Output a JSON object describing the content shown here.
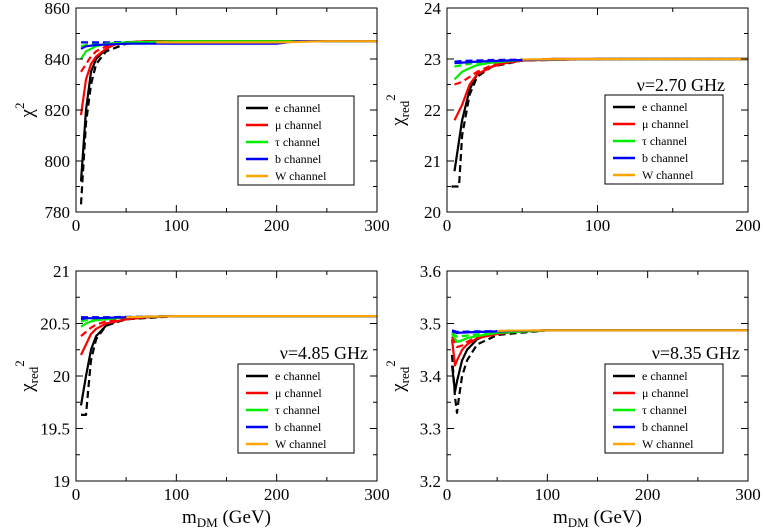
{
  "chart_data": [
    {
      "type": "line",
      "panel": "top-left",
      "title": "",
      "annotation": "",
      "xlabel": "",
      "ylabel": "χ",
      "ylabel_sup": "2",
      "ylabel_sub": "",
      "xlim": [
        0,
        300
      ],
      "ylim": [
        780,
        860
      ],
      "xticks": [
        0,
        100,
        200,
        300
      ],
      "yticks": [
        780,
        800,
        820,
        840,
        860
      ],
      "xtick_labels": [
        "0",
        "100",
        "200",
        "300"
      ],
      "ytick_labels": [
        "780",
        "800",
        "820",
        "840",
        "860"
      ],
      "legend_position": "center-right",
      "series": [
        {
          "name": "e channel",
          "color": "#000000",
          "x": [
            5,
            10,
            15,
            20,
            30,
            40,
            50,
            70,
            100,
            150,
            200,
            300
          ],
          "y": [
            792,
            820,
            835,
            840,
            844,
            846,
            846.5,
            847,
            847,
            847,
            847,
            847
          ]
        },
        {
          "name": "μ channel",
          "color": "#ff0000",
          "x": [
            5,
            10,
            15,
            20,
            30,
            40,
            50,
            70,
            100,
            150,
            200,
            300
          ],
          "y": [
            818,
            832,
            838,
            841,
            844,
            846,
            846.5,
            847,
            847,
            847,
            847,
            847
          ]
        },
        {
          "name": "τ channel",
          "color": "#00ee00",
          "x": [
            5,
            10,
            15,
            20,
            30,
            50,
            100,
            150,
            200,
            300
          ],
          "y": [
            840,
            843,
            844,
            845,
            846,
            846.5,
            847,
            847,
            847,
            847
          ]
        },
        {
          "name": "b channel",
          "color": "#0000ff",
          "x": [
            5,
            10,
            20,
            50,
            100,
            150,
            200,
            220,
            300
          ],
          "y": [
            844,
            845,
            845.5,
            846,
            846,
            846,
            846,
            847,
            847
          ]
        },
        {
          "name": "W channel",
          "color": "#ffa500",
          "x": [
            80,
            100,
            150,
            200,
            250,
            300
          ],
          "y": [
            846.5,
            846.5,
            846.5,
            846.5,
            847,
            847
          ]
        }
      ],
      "dashed_series": [
        {
          "name": "e channel (dashed)",
          "color": "#000000",
          "x": [
            5,
            10,
            15,
            20,
            30,
            50,
            100,
            300
          ],
          "y": [
            783,
            815,
            830,
            838,
            843,
            846,
            847,
            847
          ]
        },
        {
          "name": "μ channel (dashed)",
          "color": "#ff0000",
          "x": [
            5,
            10,
            15,
            20,
            30,
            50,
            100,
            300
          ],
          "y": [
            835,
            838,
            841,
            843,
            845,
            846.5,
            847,
            847
          ]
        },
        {
          "name": "τ channel (dashed)",
          "color": "#00ee00",
          "x": [
            5,
            10,
            20,
            50,
            100,
            300
          ],
          "y": [
            845,
            845.5,
            846,
            846.5,
            847,
            847
          ]
        },
        {
          "name": "b channel (dashed)",
          "color": "#0000ff",
          "x": [
            5,
            10,
            30,
            100,
            300
          ],
          "y": [
            846.5,
            846.5,
            846.5,
            847,
            847
          ]
        }
      ]
    },
    {
      "type": "line",
      "panel": "top-right",
      "title": "",
      "annotation": "ν=2.70 GHz",
      "xlabel": "",
      "ylabel": "χ",
      "ylabel_sup": "2",
      "ylabel_sub": "red",
      "xlim": [
        0,
        200
      ],
      "ylim": [
        20,
        24
      ],
      "xticks": [
        0,
        100,
        200
      ],
      "yticks": [
        20,
        21,
        22,
        23,
        24
      ],
      "xtick_labels": [
        "0",
        "100",
        "200"
      ],
      "ytick_labels": [
        "20",
        "21",
        "22",
        "23",
        "24"
      ],
      "legend_position": "center-right",
      "series": [
        {
          "name": "e channel",
          "color": "#000000",
          "x": [
            5,
            10,
            15,
            20,
            30,
            40,
            50,
            70,
            100,
            200
          ],
          "y": [
            20.8,
            21.8,
            22.4,
            22.7,
            22.85,
            22.93,
            22.97,
            23.0,
            23.0,
            23.0
          ]
        },
        {
          "name": "μ channel",
          "color": "#ff0000",
          "x": [
            5,
            10,
            15,
            20,
            30,
            40,
            50,
            70,
            100,
            200
          ],
          "y": [
            21.8,
            22.1,
            22.5,
            22.7,
            22.85,
            22.93,
            22.97,
            23.0,
            23.0,
            23.0
          ]
        },
        {
          "name": "τ channel",
          "color": "#00ee00",
          "x": [
            5,
            10,
            15,
            20,
            30,
            50,
            100,
            200
          ],
          "y": [
            22.6,
            22.75,
            22.82,
            22.88,
            22.93,
            22.98,
            23.0,
            23.0
          ]
        },
        {
          "name": "b channel",
          "color": "#0000ff",
          "x": [
            5,
            10,
            20,
            50,
            100,
            200
          ],
          "y": [
            22.92,
            22.93,
            22.95,
            22.98,
            23.0,
            23.0
          ]
        },
        {
          "name": "W channel",
          "color": "#ffa500",
          "x": [
            50,
            100,
            150,
            200
          ],
          "y": [
            22.99,
            23.0,
            23.0,
            23.0
          ]
        }
      ],
      "dashed_series": [
        {
          "name": "e channel (dashed)",
          "color": "#000000",
          "x": [
            3,
            8,
            10,
            15,
            20,
            30,
            50,
            100,
            200
          ],
          "y": [
            20.5,
            20.5,
            21.5,
            22.3,
            22.65,
            22.85,
            22.97,
            23.0,
            23.0
          ]
        },
        {
          "name": "μ channel (dashed)",
          "color": "#ff0000",
          "x": [
            5,
            10,
            15,
            20,
            30,
            50,
            100,
            200
          ],
          "y": [
            22.5,
            22.55,
            22.65,
            22.75,
            22.88,
            22.97,
            23.0,
            23.0
          ]
        },
        {
          "name": "τ channel (dashed)",
          "color": "#00ee00",
          "x": [
            5,
            10,
            20,
            50,
            100,
            200
          ],
          "y": [
            22.85,
            22.88,
            22.93,
            22.98,
            23.0,
            23.0
          ]
        },
        {
          "name": "b channel (dashed)",
          "color": "#0000ff",
          "x": [
            5,
            10,
            30,
            100,
            200
          ],
          "y": [
            22.95,
            22.96,
            22.98,
            23.0,
            23.0
          ]
        }
      ]
    },
    {
      "type": "line",
      "panel": "bottom-left",
      "title": "",
      "annotation": "ν=4.85 GHz",
      "xlabel": "m",
      "xlabel_sub": "DM",
      "xlabel_suffix": " (GeV)",
      "ylabel": "χ",
      "ylabel_sup": "2",
      "ylabel_sub": "red",
      "xlim": [
        0,
        300
      ],
      "ylim": [
        19,
        21
      ],
      "xticks": [
        0,
        100,
        200,
        300
      ],
      "yticks": [
        19,
        19.5,
        20,
        20.5,
        21
      ],
      "xtick_labels": [
        "0",
        "100",
        "200",
        "300"
      ],
      "ytick_labels": [
        "19",
        "19.5",
        "20",
        "20.5",
        "21"
      ],
      "legend_position": "bottom-right",
      "series": [
        {
          "name": "e channel",
          "color": "#000000",
          "x": [
            5,
            10,
            15,
            20,
            30,
            40,
            50,
            70,
            100,
            300
          ],
          "y": [
            19.72,
            20.0,
            20.25,
            20.38,
            20.48,
            20.52,
            20.54,
            20.56,
            20.57,
            20.57
          ]
        },
        {
          "name": "μ channel",
          "color": "#ff0000",
          "x": [
            5,
            10,
            15,
            20,
            30,
            50,
            70,
            100,
            300
          ],
          "y": [
            20.2,
            20.3,
            20.4,
            20.45,
            20.5,
            20.54,
            20.56,
            20.57,
            20.57
          ]
        },
        {
          "name": "τ channel",
          "color": "#00ee00",
          "x": [
            5,
            10,
            15,
            20,
            30,
            50,
            100,
            300
          ],
          "y": [
            20.47,
            20.5,
            20.52,
            20.53,
            20.54,
            20.56,
            20.57,
            20.57
          ]
        },
        {
          "name": "b channel",
          "color": "#0000ff",
          "x": [
            5,
            10,
            20,
            50,
            100,
            300
          ],
          "y": [
            20.54,
            20.55,
            20.55,
            20.56,
            20.57,
            20.57
          ]
        },
        {
          "name": "W channel",
          "color": "#ffa500",
          "x": [
            50,
            100,
            200,
            300
          ],
          "y": [
            20.56,
            20.57,
            20.57,
            20.57
          ]
        }
      ],
      "dashed_series": [
        {
          "name": "e channel (dashed)",
          "color": "#000000",
          "x": [
            5,
            10,
            13,
            15,
            20,
            30,
            50,
            100,
            300
          ],
          "y": [
            19.63,
            19.63,
            19.95,
            20.15,
            20.35,
            20.48,
            20.54,
            20.57,
            20.57
          ]
        },
        {
          "name": "μ channel (dashed)",
          "color": "#ff0000",
          "x": [
            5,
            10,
            15,
            20,
            30,
            50,
            100,
            300
          ],
          "y": [
            20.38,
            20.42,
            20.46,
            20.49,
            20.52,
            20.55,
            20.57,
            20.57
          ]
        },
        {
          "name": "τ channel (dashed)",
          "color": "#00ee00",
          "x": [
            5,
            10,
            20,
            50,
            100,
            300
          ],
          "y": [
            20.52,
            20.53,
            20.54,
            20.56,
            20.57,
            20.57
          ]
        },
        {
          "name": "b channel (dashed)",
          "color": "#0000ff",
          "x": [
            5,
            10,
            30,
            100,
            300
          ],
          "y": [
            20.56,
            20.56,
            20.56,
            20.57,
            20.57
          ]
        }
      ]
    },
    {
      "type": "line",
      "panel": "bottom-right",
      "title": "",
      "annotation": "ν=8.35 GHz",
      "xlabel": "m",
      "xlabel_sub": "DM",
      "xlabel_suffix": " (GeV)",
      "ylabel": "χ",
      "ylabel_sup": "2",
      "ylabel_sub": "red",
      "xlim": [
        0,
        300
      ],
      "ylim": [
        3.2,
        3.6
      ],
      "xticks": [
        0,
        100,
        200,
        300
      ],
      "yticks": [
        3.2,
        3.3,
        3.4,
        3.5,
        3.6
      ],
      "xtick_labels": [
        "0",
        "100",
        "200",
        "300"
      ],
      "ytick_labels": [
        "3.2",
        "3.3",
        "3.4",
        "3.5",
        "3.6"
      ],
      "legend_position": "bottom-right",
      "series": [
        {
          "name": "e channel",
          "color": "#000000",
          "x": [
            5,
            8,
            10,
            15,
            20,
            30,
            40,
            50,
            70,
            100,
            300
          ],
          "y": [
            3.42,
            3.37,
            3.39,
            3.43,
            3.45,
            3.47,
            3.478,
            3.482,
            3.485,
            3.487,
            3.487
          ]
        },
        {
          "name": "μ channel",
          "color": "#ff0000",
          "x": [
            5,
            8,
            10,
            15,
            20,
            30,
            50,
            70,
            100,
            300
          ],
          "y": [
            3.47,
            3.42,
            3.43,
            3.45,
            3.46,
            3.472,
            3.48,
            3.485,
            3.487,
            3.487
          ]
        },
        {
          "name": "τ channel",
          "color": "#00ee00",
          "x": [
            5,
            10,
            15,
            20,
            30,
            50,
            100,
            300
          ],
          "y": [
            3.48,
            3.465,
            3.468,
            3.472,
            3.476,
            3.482,
            3.487,
            3.487
          ]
        },
        {
          "name": "b channel",
          "color": "#0000ff",
          "x": [
            5,
            10,
            20,
            50,
            100,
            300
          ],
          "y": [
            3.485,
            3.482,
            3.483,
            3.485,
            3.487,
            3.487
          ]
        },
        {
          "name": "W channel",
          "color": "#ffa500",
          "x": [
            50,
            100,
            200,
            300
          ],
          "y": [
            3.486,
            3.487,
            3.487,
            3.487
          ]
        }
      ],
      "dashed_series": [
        {
          "name": "e channel (dashed)",
          "color": "#000000",
          "x": [
            5,
            8,
            10,
            12,
            15,
            20,
            30,
            50,
            100,
            300
          ],
          "y": [
            3.44,
            3.36,
            3.33,
            3.36,
            3.4,
            3.43,
            3.46,
            3.478,
            3.487,
            3.487
          ]
        },
        {
          "name": "μ channel (dashed)",
          "color": "#ff0000",
          "x": [
            5,
            10,
            15,
            20,
            30,
            50,
            100,
            300
          ],
          "y": [
            3.475,
            3.455,
            3.458,
            3.465,
            3.474,
            3.482,
            3.487,
            3.487
          ]
        },
        {
          "name": "τ channel (dashed)",
          "color": "#00ee00",
          "x": [
            5,
            10,
            20,
            50,
            100,
            300
          ],
          "y": [
            3.482,
            3.475,
            3.477,
            3.483,
            3.487,
            3.487
          ]
        },
        {
          "name": "b channel (dashed)",
          "color": "#0000ff",
          "x": [
            5,
            10,
            30,
            100,
            300
          ],
          "y": [
            3.487,
            3.484,
            3.485,
            3.487,
            3.487
          ]
        }
      ]
    }
  ]
}
